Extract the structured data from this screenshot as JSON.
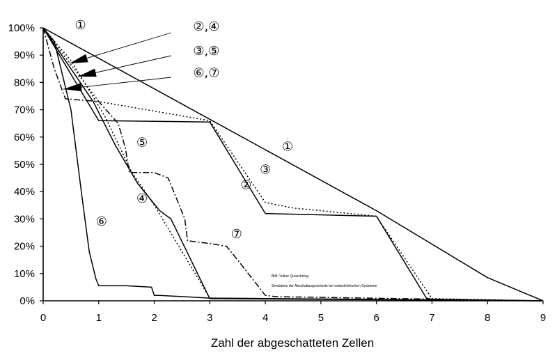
{
  "chart_data": {
    "type": "line",
    "title": "",
    "xlabel": "Zahl der abgeschatteten Zellen",
    "ylabel": "",
    "xlim": [
      0,
      9
    ],
    "ylim": [
      0,
      100
    ],
    "xticks": [
      "0",
      "1",
      "2",
      "3",
      "4",
      "5",
      "6",
      "7",
      "8",
      "9"
    ],
    "yticks": [
      "0%",
      "10%",
      "20%",
      "30%",
      "40%",
      "50%",
      "60%",
      "70%",
      "80%",
      "90%",
      "100%"
    ],
    "grid": false,
    "series": [
      {
        "name": "①",
        "style": "solid",
        "x": [
          0,
          3,
          6,
          8,
          9
        ],
        "y": [
          100,
          66.5,
          33,
          8.5,
          0
        ]
      },
      {
        "name": "②",
        "style": "solid",
        "x": [
          0,
          1,
          3,
          4,
          6,
          6.9,
          7,
          9
        ],
        "y": [
          100,
          66,
          65.5,
          32,
          31,
          1,
          0.5,
          0
        ]
      },
      {
        "name": "③",
        "style": "dotted",
        "x": [
          0,
          1,
          3,
          4,
          4.5,
          5,
          6,
          7,
          9
        ],
        "y": [
          100,
          73,
          66,
          36,
          34,
          33,
          31,
          0.8,
          0
        ]
      },
      {
        "name": "④",
        "style": "solid",
        "x": [
          0,
          0.6,
          0.9,
          1.3,
          1.7,
          2.1,
          2.3,
          3,
          9
        ],
        "y": [
          100,
          82,
          73,
          57,
          43,
          33,
          30,
          0.8,
          0
        ]
      },
      {
        "name": "⑤",
        "style": "dotted",
        "x": [
          0,
          0.5,
          1.1,
          1.6,
          2.0,
          3,
          9
        ],
        "y": [
          100,
          88,
          68,
          47,
          35,
          1,
          0
        ]
      },
      {
        "name": "⑥",
        "style": "solid",
        "x": [
          0,
          0.2,
          0.5,
          0.7,
          0.83,
          0.95,
          1,
          1.5,
          1.95,
          2.0,
          2.1,
          3,
          9
        ],
        "y": [
          100,
          95,
          70,
          38,
          18,
          8,
          5.5,
          5.5,
          5,
          2,
          2,
          1,
          0
        ]
      },
      {
        "name": "⑦",
        "style": "dashdot",
        "x": [
          0,
          0.2,
          0.4,
          1,
          1.35,
          1.48,
          1.55,
          1.75,
          2,
          2.25,
          2.55,
          2.6,
          3,
          3.3,
          3.5,
          4,
          4.2,
          9
        ],
        "y": [
          100,
          85,
          74,
          73,
          65,
          56,
          47,
          47,
          47,
          45,
          30,
          22,
          21,
          20,
          15,
          2,
          1.5,
          0
        ]
      }
    ],
    "annotations": [
      {
        "text": "①",
        "pos": [
          0.57,
          99.5
        ]
      },
      {
        "text": "②",
        "pos": [
          3.55,
          41
        ]
      },
      {
        "text": "③",
        "pos": [
          3.9,
          46.5
        ]
      },
      {
        "text": "④",
        "pos": [
          1.68,
          36
        ]
      },
      {
        "text": "⑤",
        "pos": [
          1.68,
          56.5
        ]
      },
      {
        "text": "⑥",
        "pos": [
          0.95,
          27.5
        ]
      },
      {
        "text": "⑦",
        "pos": [
          3.38,
          23
        ]
      },
      {
        "text": "①",
        "pos": [
          4.3,
          55
        ]
      },
      {
        "text": "②,④",
        "pos": [
          2.7,
          99
        ]
      },
      {
        "text": "③,⑤",
        "pos": [
          2.7,
          90
        ]
      },
      {
        "text": "⑥,⑦",
        "pos": [
          2.7,
          82
        ]
      }
    ],
    "credit": {
      "line1": "Bild: Volker Quaschning.",
      "line2": "Simulation der Abschattungsverluste bei solarelektrischen Systemen"
    }
  }
}
